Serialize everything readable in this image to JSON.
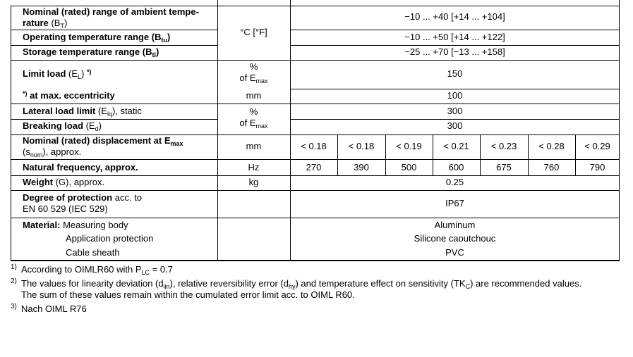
{
  "table": {
    "rows": [
      {
        "label": [
          "Nominal (rated) range of ambient tempe-",
          "rature",
          " (B",
          "T",
          ")"
        ],
        "unit": "°C [°F]",
        "value": "−10 ... +40 [+14 ... +104]"
      },
      {
        "label": [
          "Operating temperature range (B",
          "tu",
          ")"
        ],
        "value": "−10 ... +50 [+14 ... +122]"
      },
      {
        "label": [
          "Storage temperature range (B",
          "tl",
          ")"
        ],
        "value": "−25 ... +70 [−13 ... +158]"
      },
      {
        "label": [
          "Limit load",
          " (E",
          "L",
          ") ",
          "*)"
        ],
        "unit": [
          "%",
          "of E",
          "max"
        ],
        "value": "150"
      },
      {
        "label": [
          "*)",
          " at max. eccentricity"
        ],
        "unit": "mm",
        "value": "100"
      },
      {
        "label": [
          "Lateral load limit",
          " (E",
          "lq",
          "), static"
        ],
        "unit": [
          "%",
          "of E",
          "max"
        ],
        "value": "300"
      },
      {
        "label": [
          "Breaking load",
          " (E",
          "d",
          ")"
        ],
        "value": "300"
      },
      {
        "label": [
          "Nominal (rated) displacement at E",
          "max",
          "(s",
          "nom",
          "), approx."
        ],
        "unit": "mm",
        "values": [
          "< 0.18",
          "< 0.18",
          "< 0.19",
          "< 0.21",
          "< 0.23",
          "< 0.28",
          "< 0.29"
        ]
      },
      {
        "label": [
          "Natural frequency, approx."
        ],
        "unit": "Hz",
        "values": [
          "270",
          "390",
          "500",
          "600",
          "675",
          "760",
          "790"
        ]
      },
      {
        "label": [
          "Weight",
          " (G), approx."
        ],
        "unit": "kg",
        "value": "0.25"
      },
      {
        "label": [
          "Degree of protection",
          " acc. to",
          "EN 60 529 (IEC 529)"
        ],
        "value": "IP67"
      },
      {
        "label": [
          "Material:",
          " Measuring body"
        ],
        "value": "Aluminum"
      },
      {
        "label": [
          "Application protection"
        ],
        "value": "Silicone caoutchouc"
      },
      {
        "label": [
          "Cable sheath"
        ],
        "value": "PVC"
      }
    ]
  },
  "footnotes": [
    {
      "mark": "1)",
      "text": [
        "According to OIMLR60 with P",
        "LC",
        " = 0.7"
      ]
    },
    {
      "mark": "2)",
      "text": [
        "The values for linearity deviation (d",
        "lin",
        "), relative reversibility error (d",
        "hy",
        ") and temperature effect on sensitivity (TK",
        "C",
        ") are recommended values.",
        "The sum of these values remain within the cumulated error limit acc. to OIML R60."
      ]
    },
    {
      "mark": "3)",
      "text": [
        "Nach OIML R76"
      ]
    }
  ]
}
